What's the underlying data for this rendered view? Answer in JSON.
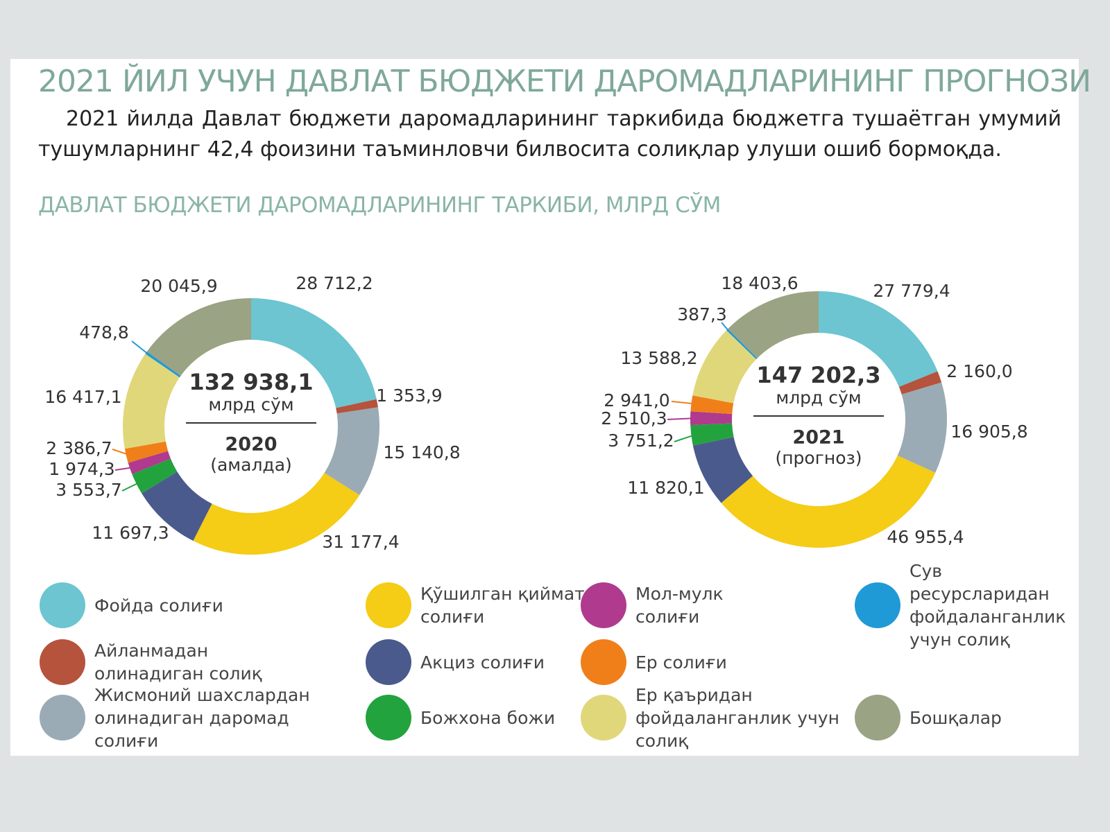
{
  "title": "2021 ЙИЛ УЧУН ДАВЛАТ БЮДЖЕТИ ДАРОМАДЛАРИНИНГ ПРОГНОЗИ",
  "paragraph": "2021 йилда Давлат бюджети даромадларининг таркибида бюджетга тушаётган умумий тушумларнинг 42,4 фоизини таъминловчи билвосита солиқлар улуши ошиб бормоқда.",
  "subtitle": "ДАВЛАТ БЮДЖЕТИ ДАРОМАДЛАРИНИНГ ТАРКИБИ, МЛРД СЎМ",
  "chart_data": [
    {
      "type": "donut",
      "categories": [
        "Фойда солиғи",
        "Айланмадан олинадиган солиқ",
        "Жисмоний шахслардан олинадиган даромад солиғи",
        "Қўшилган қиймат солиғи",
        "Акциз солиғи",
        "Божхона божи",
        "Мол-мулк солиғи",
        "Ер солиғи",
        "Ер қаъридан фойдаланганлик учун солиқ",
        "Сув ресурсларидан фойдаланганлик учун солиқ",
        "Бошқалар"
      ],
      "colors": [
        "#6cc5d1",
        "#b5533c",
        "#9aabb5",
        "#f5cc16",
        "#4b5a8c",
        "#22a33e",
        "#b03a8e",
        "#f07f1a",
        "#e0d77a",
        "#1f9ad6",
        "#9aa383"
      ],
      "values": [
        28712.2,
        1353.9,
        15140.8,
        31177.4,
        11697.3,
        3553.7,
        1974.3,
        2386.7,
        16417.1,
        478.8,
        20045.9
      ],
      "value_labels": [
        "28 712,2",
        "1 353,9",
        "15 140,8",
        "31 177,4",
        "11 697,3",
        "3 553,7",
        "1 974,3",
        "2 386,7",
        "16 417,1",
        "478,8",
        "20 045,9"
      ],
      "total": {
        "value": 132938.1,
        "label": "132 938,1"
      },
      "unit": "млрд сўм",
      "year": "2020",
      "note": "(амалда)"
    },
    {
      "type": "donut",
      "values": [
        27779.4,
        2160.0,
        16905.8,
        46955.4,
        11820.1,
        3751.2,
        2510.3,
        2941.0,
        13588.2,
        387.3,
        18403.6
      ],
      "value_labels": [
        "27 779,4",
        "2 160,0",
        "16 905,8",
        "46 955,4",
        "11 820,1",
        "3 751,2",
        "2 510,3",
        "2 941,0",
        "13 588,2",
        "387,3",
        "18 403,6"
      ],
      "total": {
        "value": 147202.3,
        "label": "147 202,3"
      },
      "unit": "млрд сўм",
      "year": "2021",
      "note": "(прогноз)"
    }
  ]
}
